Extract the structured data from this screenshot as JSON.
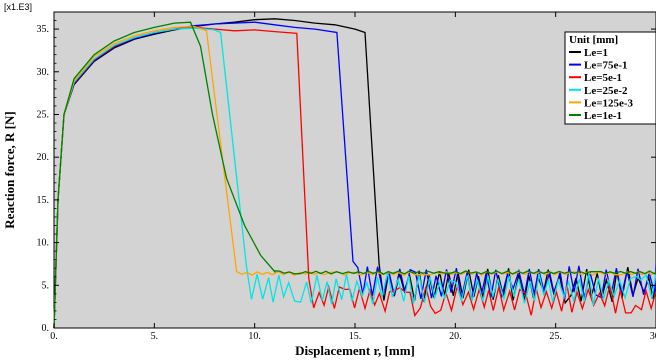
{
  "chart_data": {
    "type": "line",
    "xlabel": "Displacement r, [mm]",
    "ylabel": "Reaction force, R [N]",
    "y_multiplier": "[x1.E3]",
    "xlim": [
      0,
      30
    ],
    "ylim": [
      0,
      37
    ],
    "x_ticks": [
      0,
      5,
      10,
      15,
      20,
      25,
      30
    ],
    "x_tick_labels": [
      "0.",
      "5.",
      "10.",
      "15.",
      "20.",
      "25.",
      "30."
    ],
    "y_ticks": [
      0,
      5,
      10,
      15,
      20,
      25,
      30,
      35
    ],
    "y_tick_labels": [
      "0.",
      "5.",
      "10.",
      "15.",
      "20.",
      "25.",
      "30.",
      "35."
    ],
    "grid": false,
    "plot_background": "#d3d3d3",
    "legend": {
      "position": "top-right",
      "title": "Unit [mm]"
    },
    "series": [
      {
        "name": "Le=1",
        "color": "#000000",
        "peak_force": 36.2,
        "drop_start": 15.5,
        "drop_end": 16.2,
        "residual_mean": 5.0,
        "noise": 1.4,
        "points": [
          [
            0,
            0
          ],
          [
            0.2,
            15
          ],
          [
            0.5,
            25
          ],
          [
            1,
            28.5
          ],
          [
            2,
            31.2
          ],
          [
            3,
            32.8
          ],
          [
            4,
            33.8
          ],
          [
            5,
            34.4
          ],
          [
            6,
            34.9
          ],
          [
            7,
            35.3
          ],
          [
            8,
            35.6
          ],
          [
            9,
            35.8
          ],
          [
            10,
            36.1
          ],
          [
            11,
            36.2
          ],
          [
            12,
            36.0
          ],
          [
            13,
            35.7
          ],
          [
            14,
            35.5
          ],
          [
            15,
            35.0
          ],
          [
            15.5,
            34.6
          ]
        ]
      },
      {
        "name": "Le=75e-1",
        "color": "#0000ff",
        "peak_force": 35.8,
        "drop_start": 14.1,
        "drop_end": 14.9,
        "residual_mean": 5.3,
        "noise": 1.5,
        "points": [
          [
            0,
            0
          ],
          [
            0.2,
            15
          ],
          [
            0.5,
            25
          ],
          [
            1,
            28.6
          ],
          [
            2,
            31.3
          ],
          [
            3,
            32.9
          ],
          [
            4,
            33.9
          ],
          [
            5,
            34.5
          ],
          [
            6,
            35.0
          ],
          [
            7,
            35.4
          ],
          [
            8,
            35.6
          ],
          [
            9,
            35.7
          ],
          [
            10,
            35.8
          ],
          [
            11,
            35.5
          ],
          [
            12,
            35.2
          ],
          [
            13,
            35.0
          ],
          [
            14.1,
            34.6
          ]
        ]
      },
      {
        "name": "Le=5e-1",
        "color": "#ff0000",
        "peak_force": 35.2,
        "drop_start": 12.1,
        "drop_end": 12.7,
        "residual_mean": 3.3,
        "noise": 1.2,
        "points": [
          [
            0,
            0
          ],
          [
            0.2,
            15
          ],
          [
            0.5,
            25
          ],
          [
            1,
            28.7
          ],
          [
            2,
            31.4
          ],
          [
            3,
            33.0
          ],
          [
            4,
            34.0
          ],
          [
            5,
            34.6
          ],
          [
            6,
            35.0
          ],
          [
            7,
            35.2
          ],
          [
            8,
            35.0
          ],
          [
            9,
            34.8
          ],
          [
            10,
            34.9
          ],
          [
            11,
            34.7
          ],
          [
            12.1,
            34.5
          ]
        ]
      },
      {
        "name": "Le=25e-2",
        "color": "#00e5e5",
        "peak_force": 35.1,
        "drop_start": 8.3,
        "drop_end": 9.6,
        "residual_mean": 4.6,
        "noise": 1.3,
        "points": [
          [
            0,
            0
          ],
          [
            0.2,
            15
          ],
          [
            0.5,
            25
          ],
          [
            1,
            28.8
          ],
          [
            2,
            31.5
          ],
          [
            3,
            33.1
          ],
          [
            4,
            34.0
          ],
          [
            5,
            34.6
          ],
          [
            6,
            35.0
          ],
          [
            7,
            35.1
          ],
          [
            8,
            34.9
          ],
          [
            8.3,
            34.6
          ]
        ]
      },
      {
        "name": "Le=125e-3",
        "color": "#ffa500",
        "peak_force": 35.3,
        "drop_start": 7.6,
        "drop_end": 9.1,
        "residual_mean": 6.4,
        "noise": 0.15,
        "points": [
          [
            0,
            0
          ],
          [
            0.2,
            15
          ],
          [
            0.5,
            25
          ],
          [
            1,
            29.0
          ],
          [
            2,
            31.8
          ],
          [
            3,
            33.3
          ],
          [
            4,
            34.2
          ],
          [
            5,
            34.8
          ],
          [
            6,
            35.2
          ],
          [
            7,
            35.3
          ],
          [
            7.6,
            34.8
          ]
        ]
      },
      {
        "name": "Le=1e-1",
        "color": "#008000",
        "peak_force": 35.8,
        "drop_start": 6.8,
        "drop_end": 11.0,
        "residual_mean": 6.5,
        "noise": 0.12,
        "points": [
          [
            0,
            0
          ],
          [
            0.2,
            15
          ],
          [
            0.5,
            25
          ],
          [
            1,
            29.2
          ],
          [
            2,
            32.0
          ],
          [
            3,
            33.6
          ],
          [
            4,
            34.6
          ],
          [
            5,
            35.2
          ],
          [
            6,
            35.7
          ],
          [
            6.8,
            35.8
          ],
          [
            7.3,
            33.0
          ],
          [
            7.9,
            25.0
          ],
          [
            8.6,
            17.5
          ],
          [
            9.5,
            12.0
          ],
          [
            10.3,
            8.5
          ],
          [
            11.0,
            6.6
          ]
        ]
      }
    ]
  }
}
